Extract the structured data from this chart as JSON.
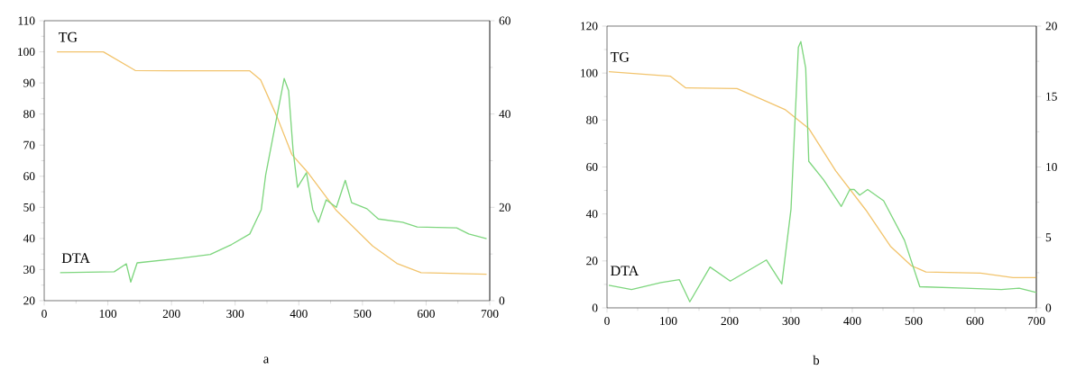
{
  "chart_data": [
    {
      "type": "line",
      "annotations": [
        "a"
      ],
      "xlim": [
        0,
        700
      ],
      "xticks": [
        0,
        {
          "value": 50,
          "label": null
        },
        100,
        {
          "value": 150,
          "label": null
        },
        200,
        {
          "value": 250,
          "label": null
        },
        300,
        {
          "value": 350,
          "label": null
        },
        400,
        {
          "value": 450,
          "label": null
        },
        500,
        {
          "value": 550,
          "label": null
        },
        600,
        {
          "value": 650,
          "label": null
        },
        700
      ],
      "ylim": [
        20,
        110
      ],
      "yticks": [
        20,
        {
          "value": 25,
          "label": null
        },
        30,
        {
          "value": 35,
          "label": null
        },
        40,
        {
          "value": 45,
          "label": null
        },
        50,
        {
          "value": 55,
          "label": null
        },
        60,
        {
          "value": 65,
          "label": null
        },
        70,
        {
          "value": 75,
          "label": null
        },
        80,
        {
          "value": 85,
          "label": null
        },
        90,
        {
          "value": 95,
          "label": null
        },
        100,
        {
          "value": 105,
          "label": null
        },
        110
      ],
      "y2lim": [
        0,
        60
      ],
      "y2ticks": [
        0,
        {
          "value": 10,
          "label": null
        },
        20,
        {
          "value": 30,
          "label": null
        },
        40,
        {
          "value": 50,
          "label": null
        },
        60
      ],
      "series": [
        {
          "name": "TG",
          "color": "#f2c46d",
          "x": [
            20,
            93,
            143,
            200,
            323,
            340,
            366,
            389,
            415,
            459,
            516,
            554,
            592,
            695
          ],
          "values": [
            100,
            100,
            94,
            93.9,
            93.9,
            91,
            79,
            67,
            61,
            49,
            37.6,
            32,
            29,
            28.5
          ]
        },
        {
          "name": "DTA",
          "color": "#7ed67e",
          "axis": "y2",
          "x": [
            25,
            110,
            129,
            136,
            146,
            214,
            261,
            294,
            323,
            341,
            348,
            360,
            377,
            384,
            391,
            398,
            412,
            422,
            431,
            443,
            459,
            473,
            483,
            507,
            525,
            563,
            586,
            648,
            667,
            695
          ],
          "values": [
            6.0,
            6.2,
            7.9,
            4.0,
            8.1,
            9.1,
            9.9,
            12.0,
            14.3,
            19.5,
            27,
            35.5,
            47.6,
            45,
            32.2,
            24.3,
            27.4,
            19.5,
            16.8,
            21.6,
            20.0,
            25.8,
            21.0,
            19.7,
            17.5,
            16.8,
            15.8,
            15.6,
            14.3,
            13.3
          ]
        }
      ]
    },
    {
      "type": "line",
      "annotations": [
        "b"
      ],
      "xlim": [
        0,
        700
      ],
      "xticks": [
        0,
        {
          "value": 50,
          "label": null
        },
        100,
        {
          "value": 150,
          "label": null
        },
        200,
        {
          "value": 250,
          "label": null
        },
        300,
        {
          "value": 350,
          "label": null
        },
        400,
        {
          "value": 450,
          "label": null
        },
        500,
        {
          "value": 550,
          "label": null
        },
        600,
        {
          "value": 650,
          "label": null
        },
        700
      ],
      "ylim": [
        0,
        120
      ],
      "yticks": [
        0,
        {
          "value": 10,
          "label": null
        },
        20,
        {
          "value": 30,
          "label": null
        },
        40,
        {
          "value": 50,
          "label": null
        },
        60,
        {
          "value": 70,
          "label": null
        },
        80,
        {
          "value": 90,
          "label": null
        },
        100,
        {
          "value": 110,
          "label": null
        },
        120
      ],
      "y2lim": [
        0,
        20
      ],
      "y2ticks": [
        0,
        {
          "value": 2.5,
          "label": null
        },
        5,
        {
          "value": 7.5,
          "label": null
        },
        10,
        {
          "value": 12.5,
          "label": null
        },
        15,
        {
          "value": 17.5,
          "label": null
        },
        20
      ],
      "series": [
        {
          "name": "TG",
          "color": "#f2c46d",
          "x": [
            3,
            103,
            128,
            212,
            260,
            290,
            329,
            373,
            422,
            462,
            496,
            520,
            609,
            662,
            700
          ],
          "values": [
            100.6,
            98.7,
            93.7,
            93.4,
            87.9,
            84.5,
            76.4,
            58.3,
            41.7,
            26.3,
            18,
            15.3,
            14.8,
            12.9,
            12.9
          ]
        },
        {
          "name": "DTA",
          "color": "#7ed67e",
          "axis": "y2",
          "x": [
            3,
            40,
            88,
            118,
            135,
            168,
            201,
            260,
            285,
            300,
            312,
            316,
            324,
            329,
            353,
            382,
            396,
            403,
            412,
            425,
            451,
            485,
            510,
            584,
            643,
            672,
            700
          ],
          "values": [
            1.6,
            1.3,
            1.8,
            2.0,
            0.43,
            2.9,
            1.9,
            3.4,
            1.7,
            7.0,
            18.5,
            18.9,
            17.0,
            10.4,
            9.1,
            7.2,
            8.4,
            8.4,
            8.0,
            8.4,
            7.6,
            4.8,
            1.5,
            1.4,
            1.3,
            1.4,
            1.1
          ]
        }
      ]
    }
  ]
}
